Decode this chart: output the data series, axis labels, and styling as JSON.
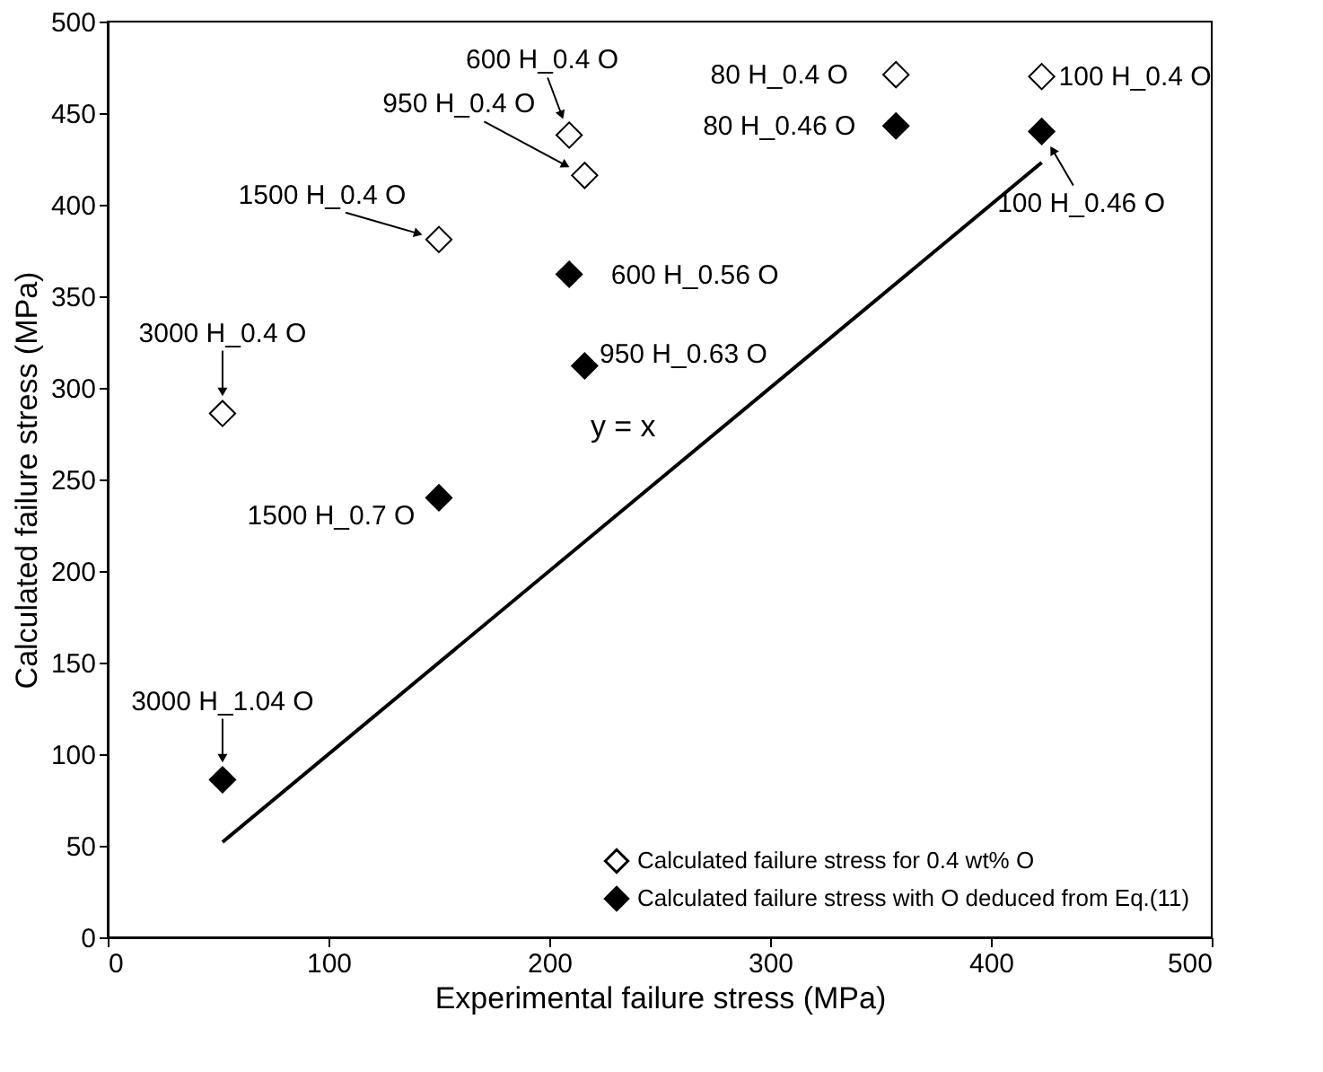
{
  "chart_data": {
    "type": "scatter",
    "xlabel": "Experimental failure stress (MPa)",
    "ylabel": "Calculated failure stress (MPa)",
    "xlim": [
      0,
      500
    ],
    "xticks": [
      0,
      100,
      200,
      300,
      400,
      500
    ],
    "ylim": [
      0,
      500
    ],
    "yticks": [
      0,
      50,
      100,
      150,
      200,
      250,
      300,
      350,
      400,
      450,
      500
    ],
    "grid": false,
    "legend": "bottom right",
    "series": [
      {
        "name": "Calculated failure stress for 0.4 wt% O",
        "color": "#ffffff",
        "marker": "diamond",
        "x": [
          52,
          150,
          209,
          216,
          357,
          423
        ],
        "values": [
          286,
          381,
          438,
          416,
          471,
          470
        ]
      },
      {
        "name": "Calculated failure stress with O deduced from Eq.(11)",
        "color": "#000000",
        "marker": "diamond",
        "x": [
          52,
          150,
          209,
          216,
          357,
          423
        ],
        "values": [
          86,
          240,
          362,
          312,
          443,
          440
        ]
      },
      {
        "name": "y = x",
        "type": "line",
        "marker": "none",
        "color": "#000000",
        "x": [
          52,
          423
        ],
        "values": [
          52,
          423
        ]
      }
    ],
    "annotations": [
      {
        "text": "600 H_0.4 O",
        "x": 209,
        "y": 438
      },
      {
        "text": "950 H_0.4 O",
        "x": 216,
        "y": 416
      },
      {
        "text": "1500 H_0.4 O",
        "x": 150,
        "y": 381
      },
      {
        "text": "3000 H_0.4 O",
        "x": 52,
        "y": 286
      },
      {
        "text": "80 H_0.4 O",
        "x": 357,
        "y": 471
      },
      {
        "text": "100 H_0.4 O",
        "x": 423,
        "y": 470
      },
      {
        "text": "80 H_0.46 O",
        "x": 357,
        "y": 443
      },
      {
        "text": "600 H_0.56 O",
        "x": 209,
        "y": 362
      },
      {
        "text": "100 H_0.46 O",
        "x": 423,
        "y": 440
      },
      {
        "text": "950 H_0.63 O",
        "x": 216,
        "y": 312
      },
      {
        "text": "1500 H_0.7 O",
        "x": 150,
        "y": 240
      },
      {
        "text": "3000 H_1.04 O",
        "x": 52,
        "y": 86
      }
    ]
  }
}
